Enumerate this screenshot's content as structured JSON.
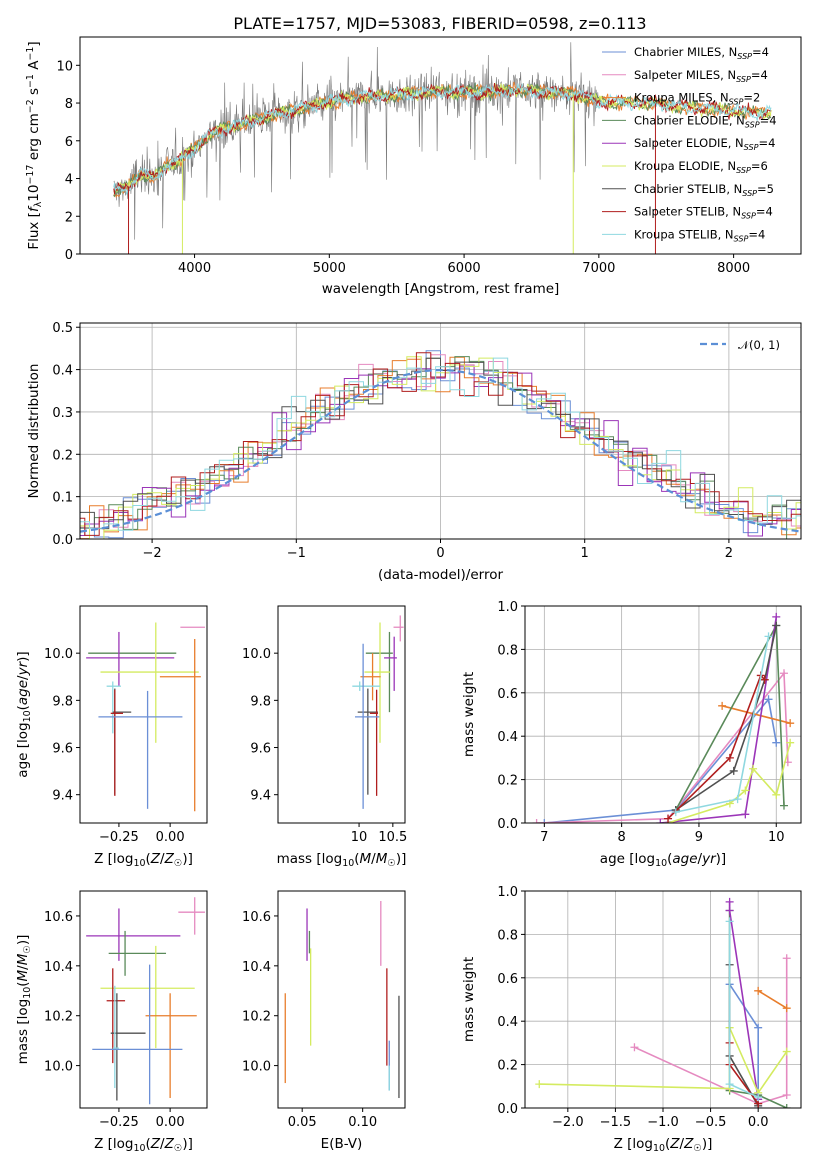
{
  "figure": {
    "title": "PLATE=1757, MJD=53083, FIBERID=0598, z=0.113"
  },
  "colors": {
    "Chabrier MILES": "#6b8fd6",
    "Salpeter MILES": "#e58ac0",
    "Kroupa MILES": "#e87d2c",
    "Chabrier ELODIE": "#5a8a5a",
    "Salpeter ELODIE": "#9b35b8",
    "Kroupa ELODIE": "#d4eb60",
    "Chabrier STELIB": "#505050",
    "Salpeter STELIB": "#b01e1e",
    "Kroupa STELIB": "#8fd8e0"
  },
  "chart_data": [
    {
      "id": "spectrum",
      "type": "line",
      "title": "PLATE=1757, MJD=53083, FIBERID=0598, z=0.113",
      "xlabel": "wavelength [Angstrom, rest frame]",
      "ylabel": "Flux [f_λ10^-17 erg cm^-2 s^-1 A^-1]",
      "xlim": [
        3150,
        8500
      ],
      "ylim": [
        0,
        11.5
      ],
      "xticks": [
        "4000",
        "5000",
        "6000",
        "7000",
        "8000"
      ],
      "yticks": [
        "0",
        "2",
        "4",
        "6",
        "8",
        "10"
      ],
      "grid": false,
      "legend_position": "top-right",
      "legend": [
        "Chabrier MILES, N_SSP=4",
        "Salpeter MILES, N_SSP=4",
        "Kroupa MILES, N_SSP=2",
        "Chabrier ELODIE, N_SSP=4",
        "Salpeter ELODIE, N_SSP=4",
        "Kroupa ELODIE, N_SSP=6",
        "Chabrier STELIB, N_SSP=5",
        "Salpeter STELIB, N_SSP=4",
        "Kroupa STELIB, N_SSP=4"
      ],
      "continuum_x": [
        3400,
        3500,
        3600,
        3700,
        3800,
        3900,
        4000,
        4100,
        4200,
        4300,
        4400,
        4500,
        4600,
        4700,
        4800,
        4900,
        5000,
        5200,
        5400,
        5600,
        5800,
        6000,
        6200,
        6400,
        6600,
        6800,
        7000,
        7200,
        7400,
        7600,
        7800,
        8000,
        8200,
        8280
      ],
      "continuum_y": [
        3.3,
        3.5,
        4.3,
        4.0,
        4.7,
        5.0,
        5.6,
        6.3,
        6.6,
        6.8,
        7.0,
        7.2,
        7.4,
        7.6,
        7.7,
        7.9,
        8.1,
        8.3,
        8.4,
        8.5,
        8.6,
        8.6,
        8.6,
        8.7,
        8.6,
        8.5,
        8.1,
        8.0,
        8.0,
        7.8,
        7.7,
        7.6,
        7.5,
        7.5
      ]
    },
    {
      "id": "residuals",
      "type": "histogram",
      "xlabel": "(data-model)/error",
      "ylabel": "Normed distribution",
      "xlim": [
        -2.5,
        2.5
      ],
      "ylim": [
        0,
        0.51
      ],
      "xticks": [
        "−2",
        "−1",
        "0",
        "1",
        "2"
      ],
      "yticks": [
        "0.0",
        "0.1",
        "0.2",
        "0.3",
        "0.4",
        "0.5"
      ],
      "grid": true,
      "legend_position": "top-right",
      "reference_curve": "N(0,1)",
      "reference_label": "𝒩(0, 1)",
      "bin_width": 0.1
    },
    {
      "id": "age-vs-Z",
      "type": "errorbar",
      "xlabel": "Z [log10(Z/Z☉)]",
      "ylabel": "age [log10(age/yr)]",
      "xlim": [
        -0.44,
        0.18
      ],
      "ylim": [
        9.28,
        10.2
      ],
      "xticks": [
        "−0.25",
        "0.00"
      ],
      "yticks": [
        "9.4",
        "9.6",
        "9.8",
        "10.0"
      ],
      "points": [
        {
          "model": "Salpeter MILES",
          "x": 0.12,
          "y": 10.11,
          "xerr": [
            0.07,
            0.05
          ],
          "yerr": [
            0,
            0
          ]
        },
        {
          "model": "Chabrier ELODIE",
          "x": -0.12,
          "y": 10.0,
          "xerr": [
            0.28,
            0.15
          ],
          "yerr": [
            0,
            0
          ]
        },
        {
          "model": "Salpeter ELODIE",
          "x": -0.25,
          "y": 9.98,
          "xerr": [
            0.16,
            0.27
          ],
          "yerr": [
            0.12,
            0.11
          ]
        },
        {
          "model": "Kroupa ELODIE",
          "x": -0.07,
          "y": 9.92,
          "xerr": [
            0.27,
            0.21
          ],
          "yerr": [
            0.3,
            0.21
          ]
        },
        {
          "model": "Kroupa MILES",
          "x": 0.12,
          "y": 9.9,
          "xerr": [
            0.17,
            0.03
          ],
          "yerr": [
            0.57,
            0.16
          ]
        },
        {
          "model": "Kroupa STELIB",
          "x": -0.28,
          "y": 9.86,
          "xerr": [
            0.03,
            0.04
          ],
          "yerr": [
            0.2,
            0.02
          ]
        },
        {
          "model": "Chabrier STELIB",
          "x": -0.27,
          "y": 9.75,
          "xerr": [
            0.01,
            0.08
          ],
          "yerr": [
            0.35,
            0.1
          ]
        },
        {
          "model": "Salpeter STELIB",
          "x": -0.27,
          "y": 9.745,
          "xerr": [
            0.02,
            0.04
          ],
          "yerr": [
            0.35,
            0.1
          ]
        },
        {
          "model": "Chabrier MILES",
          "x": -0.11,
          "y": 9.73,
          "xerr": [
            0.24,
            0.17
          ],
          "yerr": [
            0.39,
            0.11
          ]
        }
      ]
    },
    {
      "id": "age-vs-mass",
      "type": "errorbar",
      "xlabel": "mass [log10(M/M☉)]",
      "ylabel": "",
      "xlim": [
        8.8,
        10.68
      ],
      "ylim": [
        9.28,
        10.2
      ],
      "xticks": [
        "10",
        "10.5"
      ],
      "yticks": [
        "9.4",
        "9.6",
        "9.8",
        "10.0"
      ],
      "points": [
        {
          "model": "Salpeter MILES",
          "x": 10.61,
          "y": 10.11,
          "xerr": [
            0.1,
            0.05
          ],
          "yerr": [
            0.06,
            0.05
          ]
        },
        {
          "model": "Chabrier ELODIE",
          "x": 10.45,
          "y": 10.0,
          "xerr": [
            0.35,
            0.05
          ],
          "yerr": [
            0.25,
            0.09
          ]
        },
        {
          "model": "Salpeter ELODIE",
          "x": 10.52,
          "y": 9.98,
          "xerr": [
            0.15,
            0.04
          ],
          "yerr": [
            0.14,
            0.09
          ]
        },
        {
          "model": "Kroupa ELODIE",
          "x": 10.31,
          "y": 9.92,
          "xerr": [
            0.23,
            0.15
          ],
          "yerr": [
            0.3,
            0.21
          ]
        },
        {
          "model": "Kroupa MILES",
          "x": 10.2,
          "y": 9.9,
          "xerr": [
            0.18,
            0.12
          ],
          "yerr": [
            0.1,
            0.1
          ]
        },
        {
          "model": "Kroupa STELIB",
          "x": 10.01,
          "y": 9.86,
          "xerr": [
            0.11,
            0.3
          ],
          "yerr": [
            0.02,
            0.02
          ]
        },
        {
          "model": "Chabrier STELIB",
          "x": 10.13,
          "y": 9.75,
          "xerr": [
            0.15,
            0.15
          ],
          "yerr": [
            0.35,
            0.1
          ]
        },
        {
          "model": "Salpeter STELIB",
          "x": 10.26,
          "y": 9.745,
          "xerr": [
            0.1,
            0.02
          ],
          "yerr": [
            0.35,
            0.1
          ]
        },
        {
          "model": "Chabrier MILES",
          "x": 10.06,
          "y": 9.73,
          "xerr": [
            0.12,
            0.24
          ],
          "yerr": [
            0.39,
            0.31
          ]
        }
      ]
    },
    {
      "id": "mass-weight-vs-age",
      "type": "line",
      "xlabel": "age [log10(age/yr)]",
      "ylabel": "mass weight",
      "xlim": [
        6.75,
        10.32
      ],
      "ylim": [
        0,
        1.0
      ],
      "xticks": [
        "7",
        "8",
        "9",
        "10"
      ],
      "yticks": [
        "0.0",
        "0.2",
        "0.4",
        "0.6",
        "0.8",
        "1.0"
      ],
      "grid": true,
      "series": [
        {
          "model": "Chabrier MILES",
          "x": [
            7.0,
            8.7,
            9.9,
            10.0
          ],
          "y": [
            0.0,
            0.06,
            0.57,
            0.37
          ]
        },
        {
          "model": "Salpeter MILES",
          "x": [
            6.9,
            8.6,
            10.1,
            10.15
          ],
          "y": [
            0.0,
            0.02,
            0.69,
            0.28
          ]
        },
        {
          "model": "Kroupa MILES",
          "x": [
            9.3,
            10.18
          ],
          "y": [
            0.54,
            0.46
          ]
        },
        {
          "model": "Chabrier ELODIE",
          "x": [
            8.7,
            10.0,
            10.1
          ],
          "y": [
            0.06,
            0.91,
            0.08
          ]
        },
        {
          "model": "Salpeter ELODIE",
          "x": [
            8.5,
            9.6,
            10.0
          ],
          "y": [
            0.0,
            0.04,
            0.95
          ]
        },
        {
          "model": "Kroupa ELODIE",
          "x": [
            8.6,
            9.4,
            9.6,
            9.7,
            10.0,
            10.18
          ],
          "y": [
            0.0,
            0.09,
            0.15,
            0.25,
            0.13,
            0.37
          ]
        },
        {
          "model": "Chabrier STELIB",
          "x": [
            8.7,
            9.45,
            9.85,
            10.0
          ],
          "y": [
            0.06,
            0.24,
            0.66,
            0.91
          ]
        },
        {
          "model": "Salpeter STELIB",
          "x": [
            8.6,
            9.4,
            9.8,
            9.85
          ],
          "y": [
            0.02,
            0.3,
            0.68,
            0.66
          ]
        },
        {
          "model": "Kroupa STELIB",
          "x": [
            8.7,
            9.5,
            9.9
          ],
          "y": [
            0.05,
            0.11,
            0.86
          ]
        }
      ]
    },
    {
      "id": "mass-vs-Z",
      "type": "errorbar",
      "xlabel": "Z [log10(Z/Z☉)]",
      "ylabel": "mass [log10(M/M☉)]",
      "xlim": [
        -0.44,
        0.18
      ],
      "ylim": [
        9.83,
        10.7
      ],
      "xticks": [
        "−0.25",
        "0.00"
      ],
      "yticks": [
        "10.0",
        "10.2",
        "10.4",
        "10.6"
      ],
      "points": [
        {
          "model": "Salpeter MILES",
          "x": 0.12,
          "y": 10.615,
          "xerr": [
            0.08,
            0.05
          ],
          "yerr": [
            0.09,
            0.06
          ]
        },
        {
          "model": "Salpeter ELODIE",
          "x": -0.25,
          "y": 10.52,
          "xerr": [
            0.16,
            0.3
          ],
          "yerr": [
            0.1,
            0.11
          ]
        },
        {
          "model": "Chabrier ELODIE",
          "x": -0.22,
          "y": 10.45,
          "xerr": [
            0.08,
            0.2
          ],
          "yerr": [
            0.09,
            0.09
          ]
        },
        {
          "model": "Kroupa ELODIE",
          "x": -0.07,
          "y": 10.31,
          "xerr": [
            0.27,
            0.19
          ],
          "yerr": [
            0.24,
            0.17
          ]
        },
        {
          "model": "Salpeter STELIB",
          "x": -0.28,
          "y": 10.26,
          "xerr": [
            0.03,
            0.06
          ],
          "yerr": [
            0.25,
            0.13
          ]
        },
        {
          "model": "Kroupa MILES",
          "x": 0.0,
          "y": 10.2,
          "xerr": [
            0.12,
            0.13
          ],
          "yerr": [
            0.33,
            0.09
          ]
        },
        {
          "model": "Chabrier STELIB",
          "x": -0.26,
          "y": 10.13,
          "xerr": [
            0.03,
            0.14
          ],
          "yerr": [
            0.27,
            0.16
          ]
        },
        {
          "model": "Kroupa STELIB",
          "x": -0.27,
          "y": 10.07,
          "xerr": [
            0.01,
            0.02
          ],
          "yerr": [
            0.16,
            0.25
          ]
        },
        {
          "model": "Chabrier MILES",
          "x": -0.1,
          "y": 10.065,
          "xerr": [
            0.28,
            0.16
          ],
          "yerr": [
            0.22,
            0.34
          ]
        }
      ]
    },
    {
      "id": "mass-vs-ebv",
      "type": "errorbar",
      "xlabel": "E(B-V)",
      "ylabel": "",
      "xlim": [
        0.03,
        0.135
      ],
      "ylim": [
        9.83,
        10.7
      ],
      "xticks": [
        "0.05",
        "0.10"
      ],
      "yticks": [
        "10.0",
        "10.2",
        "10.4",
        "10.6"
      ],
      "points": [
        {
          "model": "Kroupa MILES",
          "x": 0.036,
          "y": 10.1,
          "xerr": [
            0,
            0
          ],
          "yerr": [
            0.17,
            0.19
          ]
        },
        {
          "model": "Salpeter ELODIE",
          "x": 0.054,
          "y": 10.52,
          "xerr": [
            0,
            0
          ],
          "yerr": [
            0.1,
            0.11
          ]
        },
        {
          "model": "Chabrier ELODIE",
          "x": 0.056,
          "y": 10.5,
          "xerr": [
            0,
            0
          ],
          "yerr": [
            0.05,
            0.04
          ]
        },
        {
          "model": "Kroupa ELODIE",
          "x": 0.057,
          "y": 10.25,
          "xerr": [
            0,
            0
          ],
          "yerr": [
            0.17,
            0.22
          ]
        },
        {
          "model": "Salpeter MILES",
          "x": 0.115,
          "y": 10.5,
          "xerr": [
            0,
            0
          ],
          "yerr": [
            0.1,
            0.16
          ]
        },
        {
          "model": "Salpeter STELIB",
          "x": 0.12,
          "y": 10.2,
          "xerr": [
            0,
            0
          ],
          "yerr": [
            0.2,
            0.19
          ]
        },
        {
          "model": "Chabrier MILES",
          "x": 0.122,
          "y": 10.0,
          "xerr": [
            0,
            0
          ],
          "yerr": [
            0.1,
            0.1
          ]
        },
        {
          "model": "Kroupa STELIB",
          "x": 0.122,
          "y": 9.95,
          "xerr": [
            0,
            0
          ],
          "yerr": [
            0.05,
            0.05
          ]
        },
        {
          "model": "Chabrier STELIB",
          "x": 0.13,
          "y": 10.07,
          "xerr": [
            0,
            0
          ],
          "yerr": [
            0.2,
            0.21
          ]
        }
      ]
    },
    {
      "id": "mass-weight-vs-Z",
      "type": "line",
      "xlabel": "Z [log10(Z/Z☉)]",
      "ylabel": "mass weight",
      "xlim": [
        -2.45,
        0.45
      ],
      "ylim": [
        0,
        1.0
      ],
      "xticks": [
        "−2.0",
        "−1.5",
        "−1.0",
        "−0.5",
        "0.0"
      ],
      "yticks": [
        "0.0",
        "0.2",
        "0.4",
        "0.6",
        "0.8",
        "1.0"
      ],
      "grid": true,
      "series": [
        {
          "model": "Chabrier MILES",
          "x": [
            -0.3,
            0.0,
            0.0
          ],
          "y": [
            0.57,
            0.37,
            0.0
          ]
        },
        {
          "model": "Salpeter MILES",
          "x": [
            -1.3,
            0.0,
            0.3,
            0.3
          ],
          "y": [
            0.28,
            0.02,
            0.06,
            0.69
          ]
        },
        {
          "model": "Kroupa MILES",
          "x": [
            0.0,
            0.3
          ],
          "y": [
            0.54,
            0.46
          ]
        },
        {
          "model": "Chabrier ELODIE",
          "x": [
            -0.3,
            -0.3,
            0.0,
            0.3
          ],
          "y": [
            0.91,
            0.08,
            0.06,
            0.0
          ]
        },
        {
          "model": "Salpeter ELODIE",
          "x": [
            -0.3,
            -0.3,
            0.0
          ],
          "y": [
            0.95,
            0.91,
            0.04
          ]
        },
        {
          "model": "Kroupa ELODIE",
          "x": [
            -2.3,
            -0.3,
            -0.3,
            0.0,
            0.3
          ],
          "y": [
            0.11,
            0.09,
            0.37,
            0.07,
            0.26
          ]
        },
        {
          "model": "Chabrier STELIB",
          "x": [
            -0.3,
            -0.3,
            0.0
          ],
          "y": [
            0.66,
            0.24,
            0.01
          ]
        },
        {
          "model": "Salpeter STELIB",
          "x": [
            -0.3,
            -0.3,
            0.0
          ],
          "y": [
            0.3,
            0.2,
            0.02
          ]
        },
        {
          "model": "Kroupa STELIB",
          "x": [
            -0.3,
            -0.3,
            0.0
          ],
          "y": [
            0.86,
            0.11,
            0.05
          ]
        }
      ]
    }
  ]
}
